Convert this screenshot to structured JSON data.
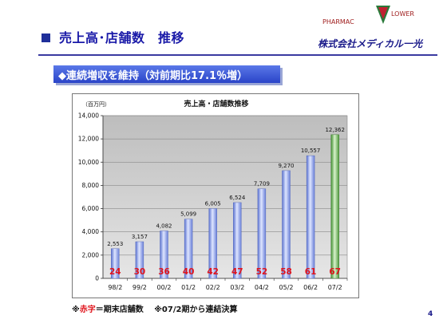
{
  "page": {
    "title": "売上高･店舗数　推移",
    "subtitle": "◆連続増収を維持（対前期比17.1％増）",
    "logo_pharmac": "PHARMAC",
    "logo_flower": "LOWER",
    "company": "株式会社メディカル一光",
    "page_number": "4",
    "footnote_red": "赤字",
    "footnote_rest": "＝期末店舗数　 ※07/2期から連結決算",
    "footnote_prefix": "※"
  },
  "chart_data": {
    "type": "bar",
    "title": "売上高・店舗数推移",
    "ylabel": "（百万円）",
    "xlabel": "",
    "ylim": [
      0,
      14000
    ],
    "yticks": [
      0,
      2000,
      4000,
      6000,
      8000,
      10000,
      12000,
      14000
    ],
    "ytick_labels": [
      "0",
      "2,000",
      "4,000",
      "6,000",
      "8,000",
      "10,000",
      "12,000",
      "14,000"
    ],
    "categories": [
      "98/2",
      "99/2",
      "00/2",
      "01/2",
      "02/2",
      "03/2",
      "04/2",
      "05/2",
      "06/2",
      "07/2"
    ],
    "values": [
      2553,
      3157,
      4082,
      5099,
      6005,
      6524,
      7709,
      9270,
      10557,
      12362
    ],
    "value_labels": [
      "2,553",
      "3,157",
      "4,082",
      "5,099",
      "6,005",
      "6,524",
      "7,709",
      "9,270",
      "10,557",
      "12,362"
    ],
    "store_counts": [
      "24",
      "30",
      "36",
      "40",
      "42",
      "47",
      "52",
      "58",
      "61",
      "67"
    ],
    "grid": true,
    "colors": {
      "bar": "#8aa0e8",
      "bar_last": "#7bc068",
      "store_count": "#e0141c",
      "plot_bg": "#c9c9c9"
    }
  }
}
